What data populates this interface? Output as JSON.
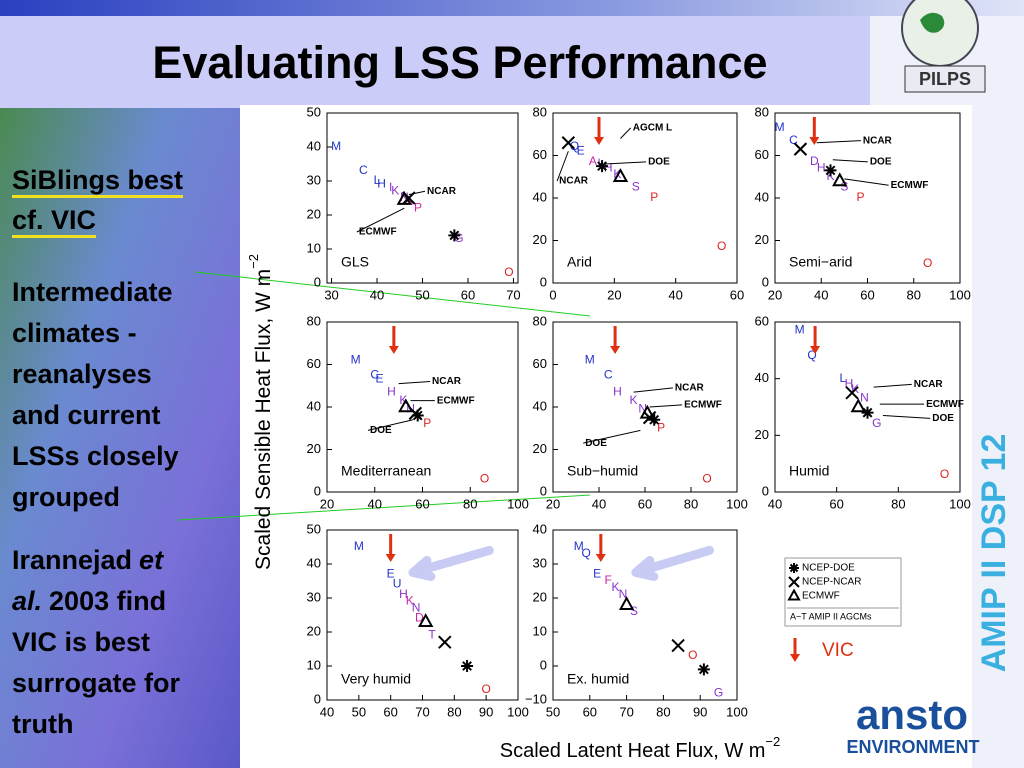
{
  "title": "Evaluating LSS Performance",
  "logo_top": "PILPS",
  "side_label": "AMIP II DSP 12",
  "bottom_logo": {
    "name": "ansto",
    "sub": "ENVIRONMENT"
  },
  "left_text": {
    "highlight": [
      "SiBlings best",
      "cf. VIC"
    ],
    "point": [
      "Intermediate",
      "climates -",
      "reanalyses",
      "and current",
      "LSSs closely",
      "grouped"
    ],
    "reference": {
      "lead": "Irannejad",
      "italic": [
        "et",
        "al."
      ],
      "lines": [
        "2003 find",
        "VIC is best",
        "surrogate for",
        "truth"
      ]
    }
  },
  "figure": {
    "ylabel": "Scaled Sensible Heat Flux, W m",
    "ylabel_sup": "−2",
    "xlabel": "Scaled Latent Heat Flux, W m",
    "xlabel_sup": "−2",
    "panels": [
      {
        "name": "GLS",
        "xlim": [
          29,
          71
        ],
        "xticks": [
          30,
          40,
          50,
          60,
          70
        ],
        "ylim": [
          0,
          50
        ],
        "yticks": [
          0,
          10,
          20,
          30,
          40,
          50
        ],
        "points": [
          {
            "label": "M",
            "x": 31,
            "y": 40,
            "color": "#2233cc"
          },
          {
            "label": "C",
            "x": 37,
            "y": 33,
            "color": "#2233cc"
          },
          {
            "label": "L",
            "x": 40,
            "y": 30,
            "color": "#2233cc"
          },
          {
            "label": "H",
            "x": 41,
            "y": 29,
            "color": "#2233cc"
          },
          {
            "label": "I",
            "x": 43,
            "y": 28,
            "color": "#8833cc"
          },
          {
            "label": "K",
            "x": 44,
            "y": 27,
            "color": "#8833cc"
          },
          {
            "label": "N",
            "x": 46,
            "y": 25,
            "color": "#8833cc"
          },
          {
            "label": "A",
            "x": 47,
            "y": 24,
            "color": "#cc22aa"
          },
          {
            "label": "P",
            "x": 49,
            "y": 22,
            "color": "#cc22aa"
          },
          {
            "label": "G",
            "x": 58,
            "y": 13,
            "color": "#8833cc"
          },
          {
            "label": "O",
            "x": 69,
            "y": 3,
            "color": "#dd2222"
          }
        ],
        "markers": [
          {
            "type": "ncep-ncar",
            "x": 47,
            "y": 25
          },
          {
            "type": "ecmwf",
            "x": 46,
            "y": 24.5
          },
          {
            "type": "ncep-doe",
            "x": 57,
            "y": 14
          }
        ],
        "annotations": [
          {
            "text": "NCAR",
            "x": 51,
            "y": 27,
            "to": [
              47,
              26
            ]
          },
          {
            "text": "ECMWF",
            "x": 36,
            "y": 15,
            "to": [
              46,
              22
            ]
          }
        ]
      },
      {
        "name": "Arid",
        "xlim": [
          0,
          60
        ],
        "xticks": [
          0,
          20,
          40,
          60
        ],
        "ylim": [
          0,
          80
        ],
        "yticks": [
          0,
          20,
          40,
          60,
          80
        ],
        "vic_x": 15,
        "points": [
          {
            "label": "Q",
            "x": 7,
            "y": 64,
            "color": "#2233cc"
          },
          {
            "label": "E",
            "x": 9,
            "y": 62,
            "color": "#2233cc"
          },
          {
            "label": "A",
            "x": 13,
            "y": 57,
            "color": "#cc22aa"
          },
          {
            "label": "I",
            "x": 15,
            "y": 56,
            "color": "#8833cc"
          },
          {
            "label": "H",
            "x": 18,
            "y": 54,
            "color": "#8833cc"
          },
          {
            "label": "K",
            "x": 21,
            "y": 51,
            "color": "#8833cc"
          },
          {
            "label": "S",
            "x": 27,
            "y": 45,
            "color": "#8833cc"
          },
          {
            "label": "P",
            "x": 33,
            "y": 40,
            "color": "#dd2222"
          },
          {
            "label": "O",
            "x": 55,
            "y": 17,
            "color": "#dd2222"
          }
        ],
        "markers": [
          {
            "type": "ncep-ncar",
            "x": 5,
            "y": 66
          },
          {
            "type": "ncep-doe",
            "x": 16,
            "y": 55
          },
          {
            "type": "ecmwf",
            "x": 22,
            "y": 50
          }
        ],
        "annotations": [
          {
            "text": "AGCM L",
            "x": 26,
            "y": 73,
            "to": [
              22,
              68
            ]
          },
          {
            "text": "DOE",
            "x": 31,
            "y": 57,
            "to": [
              17,
              56
            ]
          },
          {
            "text": "NCAR",
            "x": 2,
            "y": 48,
            "to": [
              5,
              62
            ]
          }
        ]
      },
      {
        "name": "Semi−arid",
        "xlim": [
          20,
          100
        ],
        "xticks": [
          20,
          40,
          60,
          80,
          100
        ],
        "ylim": [
          0,
          80
        ],
        "yticks": [
          0,
          20,
          40,
          60,
          80
        ],
        "vic_x": 37,
        "points": [
          {
            "label": "M",
            "x": 22,
            "y": 73,
            "color": "#2233cc"
          },
          {
            "label": "C",
            "x": 28,
            "y": 67,
            "color": "#2233cc"
          },
          {
            "label": "D",
            "x": 37,
            "y": 57,
            "color": "#8833cc"
          },
          {
            "label": "H",
            "x": 40,
            "y": 54,
            "color": "#8833cc"
          },
          {
            "label": "K",
            "x": 44,
            "y": 50,
            "color": "#8833cc"
          },
          {
            "label": "S",
            "x": 50,
            "y": 45,
            "color": "#8833cc"
          },
          {
            "label": "P",
            "x": 57,
            "y": 40,
            "color": "#dd2222"
          },
          {
            "label": "O",
            "x": 86,
            "y": 9,
            "color": "#dd2222"
          }
        ],
        "markers": [
          {
            "type": "ncep-ncar",
            "x": 31,
            "y": 63
          },
          {
            "type": "ncep-doe",
            "x": 44,
            "y": 53
          },
          {
            "type": "ecmwf",
            "x": 48,
            "y": 48
          }
        ],
        "annotations": [
          {
            "text": "NCAR",
            "x": 58,
            "y": 67,
            "to": [
              38,
              66
            ]
          },
          {
            "text": "DOE",
            "x": 61,
            "y": 57,
            "to": [
              45,
              58
            ]
          },
          {
            "text": "ECMWF",
            "x": 70,
            "y": 46,
            "to": [
              50,
              49
            ]
          }
        ]
      },
      {
        "name": "Mediterranean",
        "xlim": [
          20,
          100
        ],
        "xticks": [
          20,
          40,
          60,
          80,
          100
        ],
        "ylim": [
          0,
          80
        ],
        "yticks": [
          0,
          20,
          40,
          60,
          80
        ],
        "vic_x": 48,
        "points": [
          {
            "label": "M",
            "x": 32,
            "y": 62,
            "color": "#2233cc"
          },
          {
            "label": "C",
            "x": 40,
            "y": 55,
            "color": "#2233cc"
          },
          {
            "label": "E",
            "x": 42,
            "y": 53,
            "color": "#2233cc"
          },
          {
            "label": "H",
            "x": 47,
            "y": 47,
            "color": "#8833cc"
          },
          {
            "label": "K",
            "x": 52,
            "y": 43,
            "color": "#8833cc"
          },
          {
            "label": "N",
            "x": 55,
            "y": 39,
            "color": "#8833cc"
          },
          {
            "label": "P",
            "x": 62,
            "y": 32,
            "color": "#dd2222"
          },
          {
            "label": "O",
            "x": 86,
            "y": 6,
            "color": "#dd2222"
          }
        ],
        "markers": [
          {
            "type": "ecmwf",
            "x": 53,
            "y": 40
          },
          {
            "type": "ncep-doe",
            "x": 58,
            "y": 36
          },
          {
            "type": "ncep-ncar",
            "x": 57,
            "y": 37
          }
        ],
        "annotations": [
          {
            "text": "NCAR",
            "x": 64,
            "y": 52,
            "to": [
              50,
              51
            ]
          },
          {
            "text": "ECMWF",
            "x": 66,
            "y": 43,
            "to": [
              55,
              43
            ]
          },
          {
            "text": "DOE",
            "x": 38,
            "y": 29,
            "to": [
              56,
              34
            ]
          }
        ]
      },
      {
        "name": "Sub−humid",
        "xlim": [
          20,
          100
        ],
        "xticks": [
          20,
          40,
          60,
          80,
          100
        ],
        "ylim": [
          0,
          80
        ],
        "yticks": [
          0,
          20,
          40,
          60,
          80
        ],
        "vic_x": 47,
        "points": [
          {
            "label": "M",
            "x": 36,
            "y": 62,
            "color": "#2233cc"
          },
          {
            "label": "C",
            "x": 44,
            "y": 55,
            "color": "#2233cc"
          },
          {
            "label": "H",
            "x": 48,
            "y": 47,
            "color": "#8833cc"
          },
          {
            "label": "K",
            "x": 55,
            "y": 43,
            "color": "#8833cc"
          },
          {
            "label": "N",
            "x": 59,
            "y": 39,
            "color": "#8833cc"
          },
          {
            "label": "P",
            "x": 67,
            "y": 30,
            "color": "#dd2222"
          },
          {
            "label": "O",
            "x": 87,
            "y": 6,
            "color": "#dd2222"
          }
        ],
        "markers": [
          {
            "type": "ecmwf",
            "x": 61,
            "y": 37
          },
          {
            "type": "ncep-doe",
            "x": 64,
            "y": 34
          },
          {
            "type": "ncep-ncar",
            "x": 62,
            "y": 35
          }
        ],
        "annotations": [
          {
            "text": "NCAR",
            "x": 73,
            "y": 49,
            "to": [
              55,
              47
            ]
          },
          {
            "text": "ECMWF",
            "x": 77,
            "y": 41,
            "to": [
              62,
              40
            ]
          },
          {
            "text": "DOE",
            "x": 34,
            "y": 23,
            "to": [
              58,
              29
            ]
          }
        ]
      },
      {
        "name": "Humid",
        "xlim": [
          40,
          100
        ],
        "xticks": [
          40,
          60,
          80,
          100
        ],
        "ylim": [
          0,
          60
        ],
        "yticks": [
          0,
          20,
          40,
          60
        ],
        "vic_x": 53,
        "points": [
          {
            "label": "M",
            "x": 48,
            "y": 57,
            "color": "#2233cc"
          },
          {
            "label": "Q",
            "x": 52,
            "y": 48,
            "color": "#2233cc"
          },
          {
            "label": "L",
            "x": 62,
            "y": 40,
            "color": "#2233cc"
          },
          {
            "label": "H",
            "x": 64,
            "y": 38,
            "color": "#8833cc"
          },
          {
            "label": "K",
            "x": 66,
            "y": 36,
            "color": "#8833cc"
          },
          {
            "label": "N",
            "x": 69,
            "y": 33,
            "color": "#8833cc"
          },
          {
            "label": "G",
            "x": 73,
            "y": 24,
            "color": "#8833cc"
          },
          {
            "label": "O",
            "x": 95,
            "y": 6,
            "color": "#dd2222"
          }
        ],
        "markers": [
          {
            "type": "ncep-ncar",
            "x": 65,
            "y": 35
          },
          {
            "type": "ecmwf",
            "x": 67,
            "y": 30
          },
          {
            "type": "ncep-doe",
            "x": 70,
            "y": 28
          }
        ],
        "annotations": [
          {
            "text": "NCAR",
            "x": 85,
            "y": 38,
            "to": [
              72,
              37
            ]
          },
          {
            "text": "ECMWF",
            "x": 89,
            "y": 31,
            "to": [
              74,
              31
            ]
          },
          {
            "text": "DOE",
            "x": 91,
            "y": 26,
            "to": [
              75,
              27
            ]
          }
        ]
      },
      {
        "name": "Very humid",
        "xlim": [
          40,
          100
        ],
        "xticks": [
          40,
          50,
          60,
          70,
          80,
          90,
          100
        ],
        "ylim": [
          0,
          50
        ],
        "yticks": [
          0,
          10,
          20,
          30,
          40,
          50
        ],
        "vic_x": 60,
        "points": [
          {
            "label": "M",
            "x": 50,
            "y": 45,
            "color": "#2233cc"
          },
          {
            "label": "E",
            "x": 60,
            "y": 37,
            "color": "#2233cc"
          },
          {
            "label": "U",
            "x": 62,
            "y": 34,
            "color": "#2233cc"
          },
          {
            "label": "H",
            "x": 64,
            "y": 31,
            "color": "#8833cc"
          },
          {
            "label": "K",
            "x": 66,
            "y": 29,
            "color": "#cc22aa"
          },
          {
            "label": "N",
            "x": 68,
            "y": 27,
            "color": "#8833cc"
          },
          {
            "label": "D",
            "x": 69,
            "y": 24,
            "color": "#cc22aa"
          },
          {
            "label": "T",
            "x": 73,
            "y": 19,
            "color": "#8833cc"
          },
          {
            "label": "O",
            "x": 90,
            "y": 3,
            "color": "#dd2222"
          }
        ],
        "markers": [
          {
            "type": "ecmwf",
            "x": 71,
            "y": 23
          },
          {
            "type": "ncep-ncar",
            "x": 77,
            "y": 17
          },
          {
            "type": "ncep-doe",
            "x": 84,
            "y": 10
          }
        ],
        "annotations": []
      },
      {
        "name": "Ex. humid",
        "xlim": [
          50,
          100
        ],
        "xticks": [
          50,
          60,
          70,
          80,
          90,
          100
        ],
        "ylim": [
          -10,
          40
        ],
        "yticks": [
          {
            "value": -10,
            "label": "−10"
          },
          0,
          10,
          20,
          30,
          40
        ],
        "vic_x": 63,
        "points": [
          {
            "label": "M",
            "x": 57,
            "y": 35,
            "color": "#2233cc"
          },
          {
            "label": "Q",
            "x": 59,
            "y": 33,
            "color": "#2233cc"
          },
          {
            "label": "E",
            "x": 62,
            "y": 27,
            "color": "#2233cc"
          },
          {
            "label": "F",
            "x": 65,
            "y": 25,
            "color": "#cc22aa"
          },
          {
            "label": "K",
            "x": 67,
            "y": 23,
            "color": "#8833cc"
          },
          {
            "label": "N",
            "x": 69,
            "y": 21,
            "color": "#8833cc"
          },
          {
            "label": "S",
            "x": 72,
            "y": 16,
            "color": "#8833cc"
          },
          {
            "label": "O",
            "x": 88,
            "y": 3,
            "color": "#dd2222"
          },
          {
            "label": "G",
            "x": 95,
            "y": -8,
            "color": "#8833cc"
          }
        ],
        "markers": [
          {
            "type": "ecmwf",
            "x": 70,
            "y": 18
          },
          {
            "type": "ncep-ncar",
            "x": 84,
            "y": 6
          },
          {
            "type": "ncep-doe",
            "x": 91,
            "y": -1
          }
        ],
        "annotations": []
      }
    ],
    "legend": [
      {
        "marker": "ncep-doe",
        "label": "NCEP-DOE"
      },
      {
        "marker": "ncep-ncar",
        "label": "NCEP-NCAR"
      },
      {
        "marker": "ecmwf",
        "label": "ECMWF"
      }
    ],
    "legend_note": "A−T AMIP II AGCMs",
    "vic_label": "VIC"
  }
}
